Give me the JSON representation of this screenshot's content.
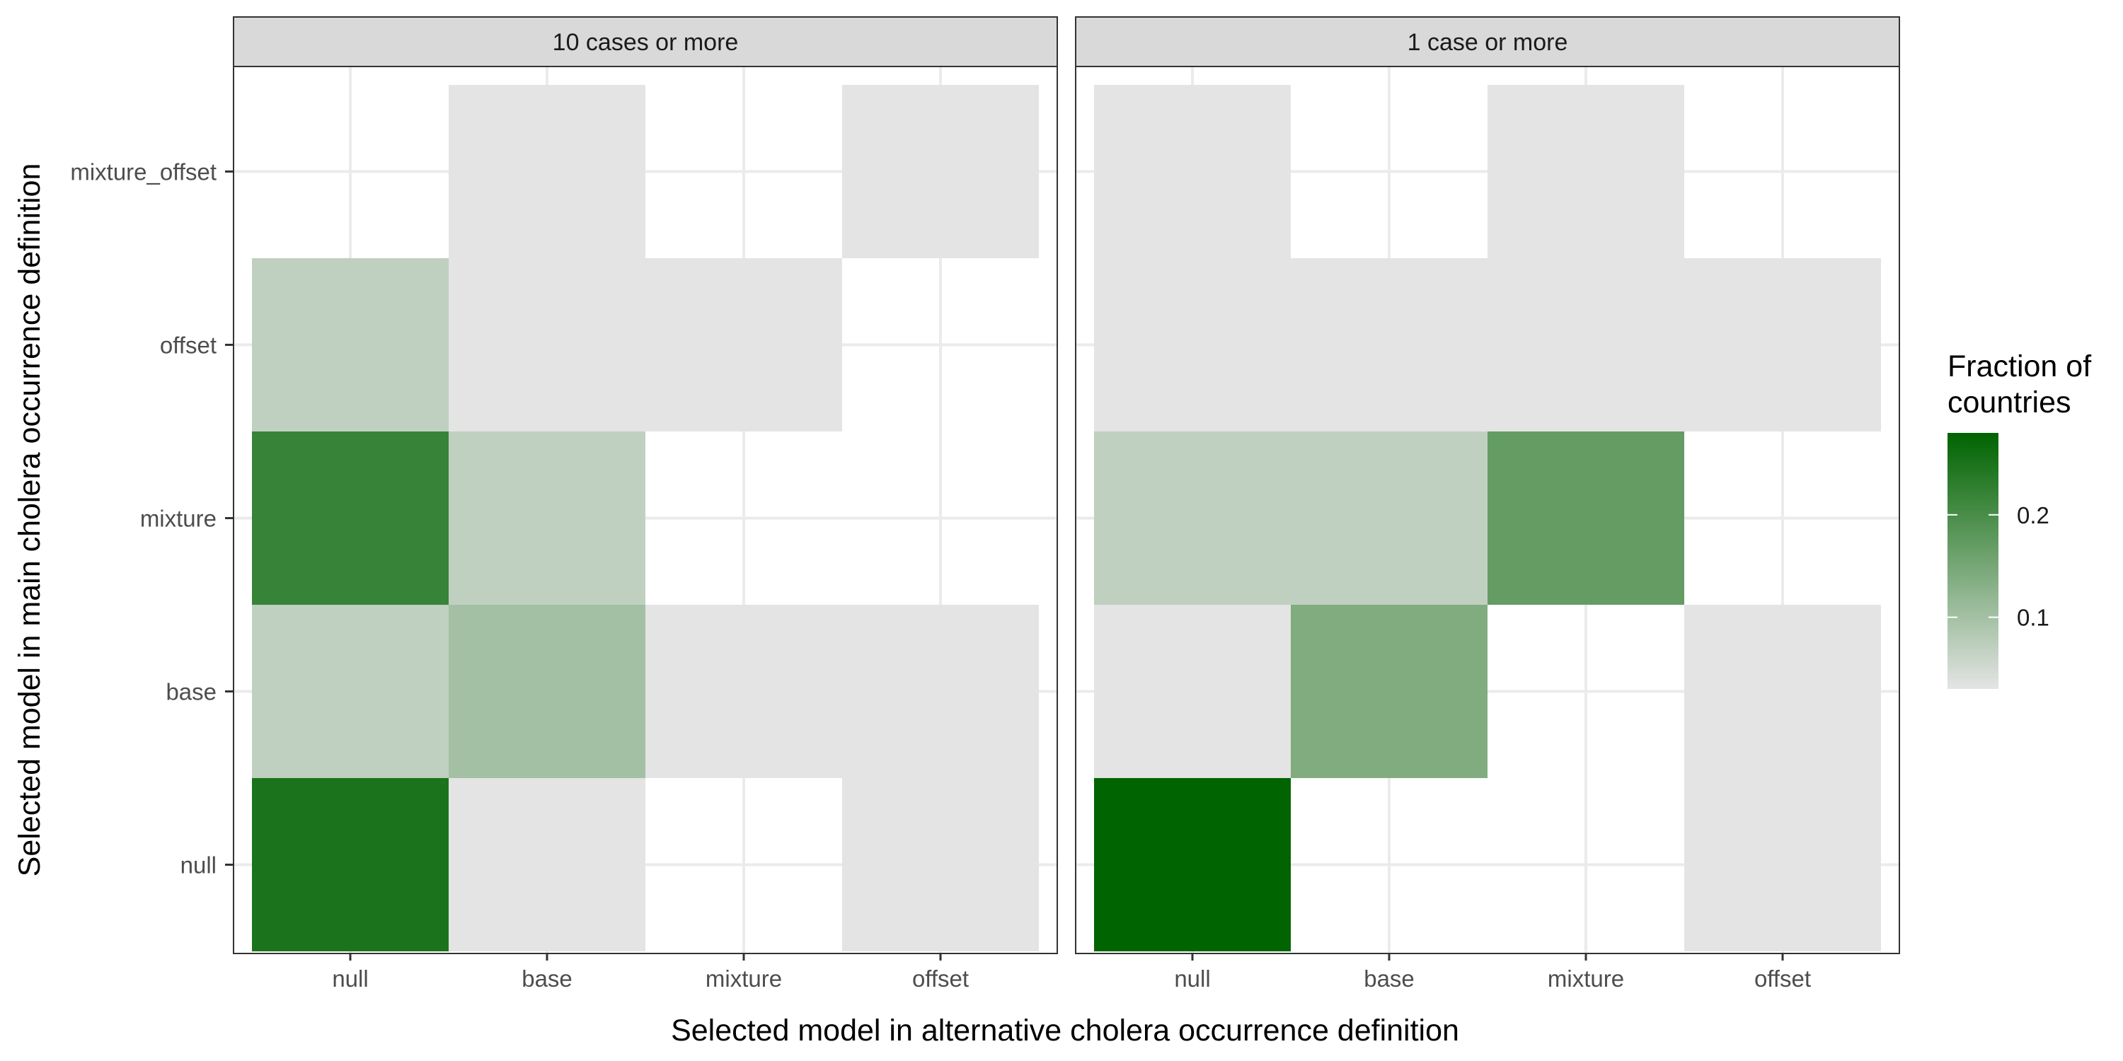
{
  "chart_data": {
    "type": "heatmap",
    "xlabel": "Selected model in alternative cholera occurrence definition",
    "ylabel": "Selected model in main cholera occurrence definition",
    "x_categories": [
      "null",
      "base",
      "mixture",
      "offset"
    ],
    "y_categories": [
      "null",
      "base",
      "mixture",
      "offset",
      "mixture_offset"
    ],
    "color_scale": {
      "low": "#e4e4e4",
      "high": "#006400",
      "min": 0.03,
      "max": 0.28
    },
    "legend": {
      "title_lines": [
        "Fraction of",
        "countries"
      ],
      "ticks": [
        0.1,
        0.2
      ],
      "tick_labels": [
        "0.1",
        "0.2"
      ],
      "position": "right"
    },
    "grid": true,
    "panels": [
      {
        "title": "10 cases or more",
        "cells": [
          {
            "x": "null",
            "y": "null",
            "value": 0.25
          },
          {
            "x": "base",
            "y": "null",
            "value": 0.03
          },
          {
            "x": "offset",
            "y": "null",
            "value": 0.03
          },
          {
            "x": "null",
            "y": "base",
            "value": 0.07
          },
          {
            "x": "base",
            "y": "base",
            "value": 0.1
          },
          {
            "x": "mixture",
            "y": "base",
            "value": 0.03
          },
          {
            "x": "offset",
            "y": "base",
            "value": 0.03
          },
          {
            "x": "null",
            "y": "mixture",
            "value": 0.22
          },
          {
            "x": "base",
            "y": "mixture",
            "value": 0.07
          },
          {
            "x": "null",
            "y": "offset",
            "value": 0.07
          },
          {
            "x": "base",
            "y": "offset",
            "value": 0.03
          },
          {
            "x": "mixture",
            "y": "offset",
            "value": 0.03
          },
          {
            "x": "base",
            "y": "mixture_offset",
            "value": 0.03
          },
          {
            "x": "offset",
            "y": "mixture_offset",
            "value": 0.03
          }
        ]
      },
      {
        "title": "1 case or more",
        "cells": [
          {
            "x": "null",
            "y": "null",
            "value": 0.28
          },
          {
            "x": "offset",
            "y": "null",
            "value": 0.03
          },
          {
            "x": "null",
            "y": "base",
            "value": 0.03
          },
          {
            "x": "base",
            "y": "base",
            "value": 0.14
          },
          {
            "x": "offset",
            "y": "base",
            "value": 0.03
          },
          {
            "x": "null",
            "y": "mixture",
            "value": 0.07
          },
          {
            "x": "base",
            "y": "mixture",
            "value": 0.07
          },
          {
            "x": "mixture",
            "y": "mixture",
            "value": 0.17
          },
          {
            "x": "null",
            "y": "offset",
            "value": 0.03
          },
          {
            "x": "base",
            "y": "offset",
            "value": 0.03
          },
          {
            "x": "mixture",
            "y": "offset",
            "value": 0.03
          },
          {
            "x": "offset",
            "y": "offset",
            "value": 0.03
          },
          {
            "x": "null",
            "y": "mixture_offset",
            "value": 0.03
          },
          {
            "x": "mixture",
            "y": "mixture_offset",
            "value": 0.03
          }
        ]
      }
    ]
  }
}
